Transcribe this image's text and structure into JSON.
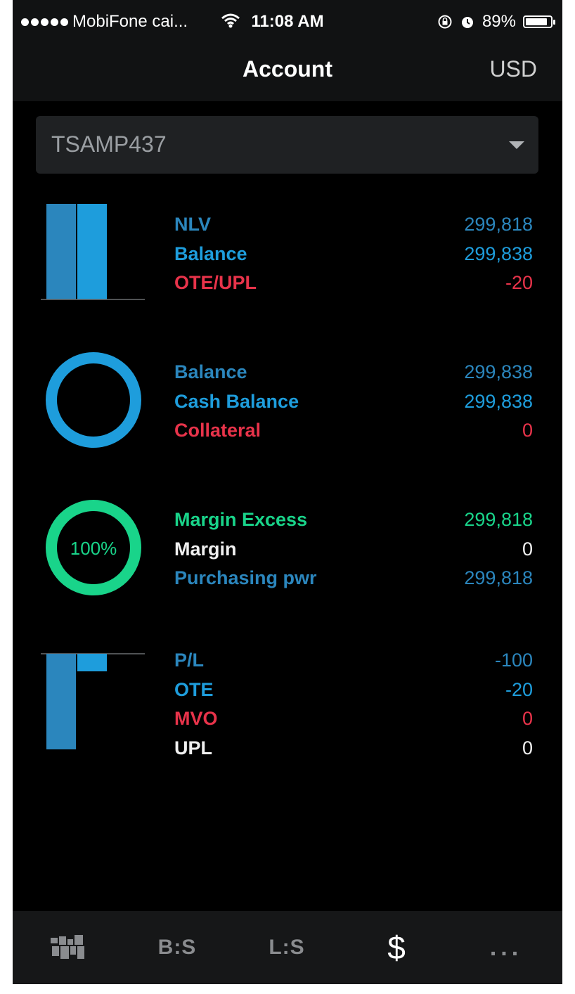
{
  "status": {
    "carrier": "MobiFone cai...",
    "time": "11:08 AM",
    "battery": "89%",
    "battery_level": 0.89
  },
  "header": {
    "title": "Account",
    "currency": "USD"
  },
  "account_select": {
    "value": "TSAMP437"
  },
  "sections": [
    {
      "rows": [
        {
          "label": "NLV",
          "value": "299,818"
        },
        {
          "label": "Balance",
          "value": "299,838"
        },
        {
          "label": "OTE/UPL",
          "value": "-20"
        }
      ]
    },
    {
      "rows": [
        {
          "label": "Balance",
          "value": "299,838"
        },
        {
          "label": "Cash Balance",
          "value": "299,838"
        },
        {
          "label": "Collateral",
          "value": "0"
        }
      ]
    },
    {
      "gauge_text": "100%",
      "gauge_level": 1.0,
      "rows": [
        {
          "label": "Margin Excess",
          "value": "299,818"
        },
        {
          "label": "Margin",
          "value": "0"
        },
        {
          "label": "Purchasing pwr",
          "value": "299,818"
        }
      ]
    },
    {
      "rows": [
        {
          "label": "P/L",
          "value": "-100"
        },
        {
          "label": "OTE",
          "value": "-20"
        },
        {
          "label": "MVO",
          "value": "0"
        },
        {
          "label": "UPL",
          "value": "0"
        }
      ]
    }
  ],
  "colors": {
    "blue_dark": "#2b86bd",
    "blue_light": "#1e9ddc",
    "red": "#e8334a",
    "green": "#19d48a"
  },
  "tabs": [
    {
      "icon": "map-icon",
      "label": ""
    },
    {
      "label": "B:S"
    },
    {
      "label": "L:S"
    },
    {
      "label": "$",
      "active": true
    },
    {
      "icon": "more-icon",
      "label": "..."
    }
  ]
}
